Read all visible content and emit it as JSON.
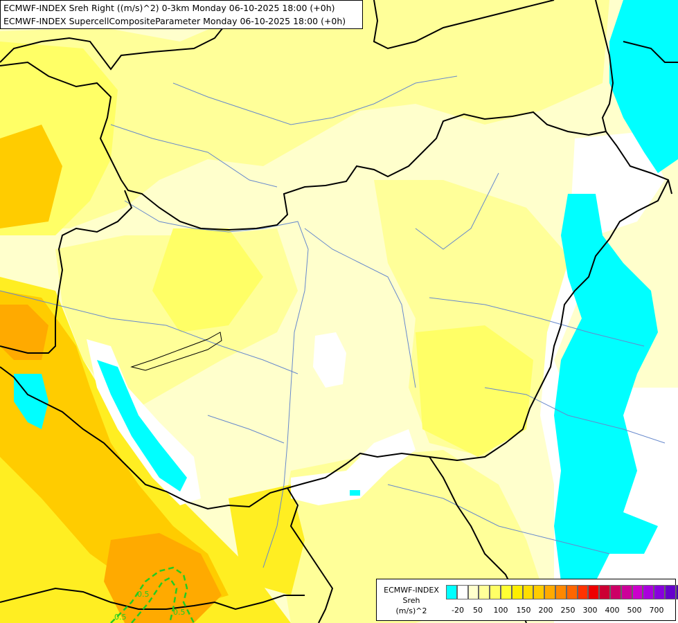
{
  "title": {
    "line1": "ECMWF-INDEX Sreh Right ((m/s)^2) 0-3km Monday 06-10-2025 18:00 (+0h)",
    "line2": "ECMWF-INDEX SupercellCompositeParameter Monday 06-10-2025 18:00 (+0h)"
  },
  "contour_labels": [
    "0.5",
    "0.5",
    "0.5"
  ],
  "colors": {
    "neg": "#00ffff",
    "zero": "#ffffff",
    "c1": "#ffffcc",
    "c2": "#ffff99",
    "c3": "#ffff66",
    "c4": "#ffee22",
    "c5": "#ffcc00",
    "c6": "#ffaa00",
    "contour": "#22cc22",
    "border": "#000000",
    "river": "#6688cc"
  },
  "legend": {
    "line1": "ECMWF-INDEX",
    "line2": "Sreh",
    "line3": "(m/s)^2",
    "swatch_colors": [
      "#00ffff",
      "#ffffff",
      "#ffffcc",
      "#ffff99",
      "#ffff66",
      "#ffff33",
      "#ffee00",
      "#ffdd00",
      "#ffcc00",
      "#ffaa00",
      "#ff8800",
      "#ff6600",
      "#ff3300",
      "#ee0000",
      "#cc0033",
      "#cc0066",
      "#cc0099",
      "#cc00cc",
      "#aa00dd",
      "#8800dd",
      "#6600cc",
      "#4400aa",
      "#220088",
      "#000066"
    ],
    "tick_labels": [
      "-20",
      "50",
      "100",
      "150",
      "200",
      "250",
      "300",
      "400",
      "500",
      "700"
    ]
  }
}
